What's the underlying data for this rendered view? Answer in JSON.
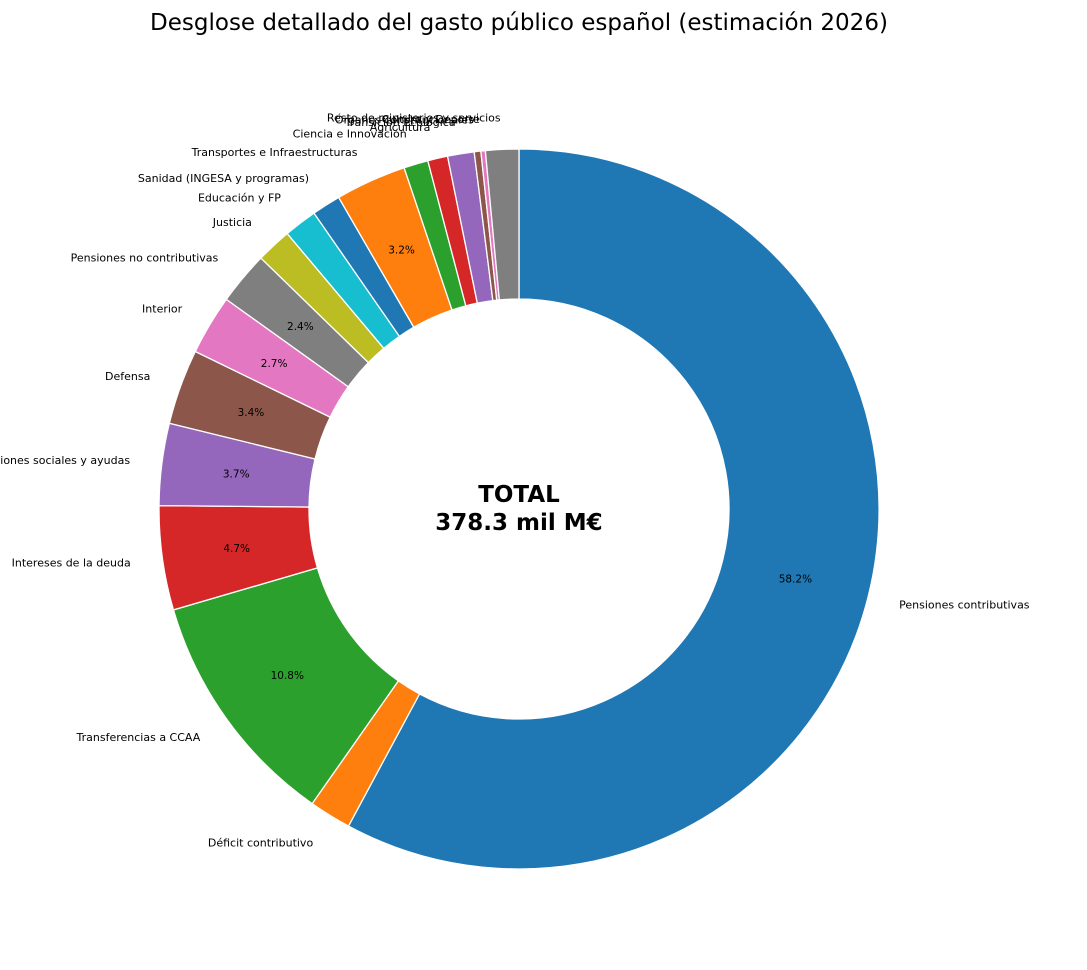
{
  "chart_data": {
    "type": "pie",
    "variant": "donut",
    "title": "Desglose detallado del gasto público español (estimación 2026)",
    "center_label": {
      "line1": "TOTAL",
      "line2": "378.3 mil M€"
    },
    "start": "top",
    "direction": "clockwise",
    "slices": [
      {
        "name": "Pensiones contributivas",
        "share": 58.2,
        "pct_label": "58.2%",
        "color": "#1f77b4"
      },
      {
        "name": "Déficit contributivo",
        "share": 1.9,
        "pct_label": "",
        "color": "#ff7f0e"
      },
      {
        "name": "Transferencias a CCAA",
        "share": 10.8,
        "pct_label": "10.8%",
        "color": "#2ca02c"
      },
      {
        "name": "Intereses de la deuda",
        "share": 4.7,
        "pct_label": "4.7%",
        "color": "#d62728"
      },
      {
        "name": "Prestaciones sociales y ayudas",
        "share": 3.7,
        "pct_label": "3.7%",
        "color": "#9467bd"
      },
      {
        "name": "Defensa",
        "share": 3.4,
        "pct_label": "3.4%",
        "color": "#8c564b"
      },
      {
        "name": "Interior",
        "share": 2.7,
        "pct_label": "2.7%",
        "color": "#e377c2"
      },
      {
        "name": "Pensiones no contributivas",
        "share": 2.4,
        "pct_label": "2.4%",
        "color": "#7f7f7f"
      },
      {
        "name": "Justicia",
        "share": 1.6,
        "pct_label": "",
        "color": "#bcbd22"
      },
      {
        "name": "Educación y FP",
        "share": 1.5,
        "pct_label": "",
        "color": "#17becf"
      },
      {
        "name": "Sanidad (INGESA y programas)",
        "share": 1.3,
        "pct_label": "",
        "color": "#1f77b4"
      },
      {
        "name": "Transportes e Infraestructuras",
        "share": 3.2,
        "pct_label": "3.2%",
        "color": "#ff7f0e"
      },
      {
        "name": "Ciencia e Innovación",
        "share": 1.1,
        "pct_label": "",
        "color": "#2ca02c"
      },
      {
        "name": "Agricultura",
        "share": 0.9,
        "pct_label": "",
        "color": "#d62728"
      },
      {
        "name": "Transición Ecológica",
        "share": 1.2,
        "pct_label": "",
        "color": "#9467bd"
      },
      {
        "name": "Órganos constitucionales",
        "share": 0.3,
        "pct_label": "",
        "color": "#8c564b"
      },
      {
        "name": "Cultura y Deporte",
        "share": 0.2,
        "pct_label": "",
        "color": "#e377c2"
      },
      {
        "name": "Resto de ministerios y servicios",
        "share": 1.5,
        "pct_label": "",
        "color": "#7f7f7f"
      }
    ]
  }
}
